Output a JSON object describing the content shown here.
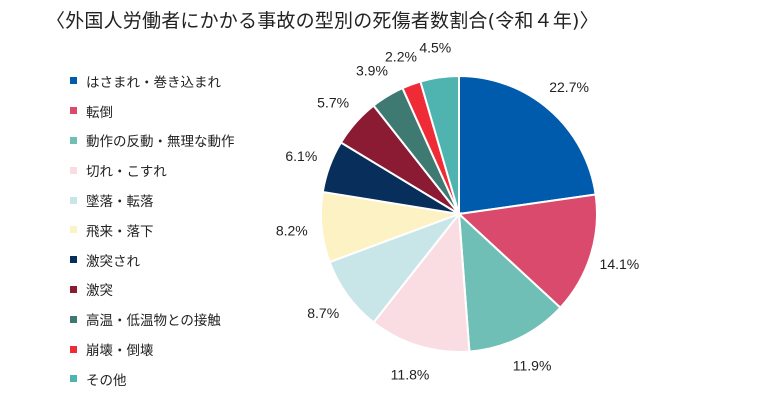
{
  "chart_data": {
    "type": "pie",
    "title": "〈外国人労働者にかかる事故の型別の死傷者数割合(令和４年)〉",
    "categories": [
      "はさまれ・巻き込まれ",
      "転倒",
      "動作の反動・無理な動作",
      "切れ・こすれ",
      "墜落・転落",
      "飛来・落下",
      "激突され",
      "激突",
      "高温・低温物との接触",
      "崩壊・倒壊",
      "その他"
    ],
    "values": [
      22.7,
      14.1,
      11.9,
      11.8,
      8.7,
      8.2,
      6.1,
      5.7,
      3.9,
      2.2,
      4.5
    ],
    "labels": [
      "22.7%",
      "14.1%",
      "11.9%",
      "11.8%",
      "8.7%",
      "8.2%",
      "6.1%",
      "5.7%",
      "3.9%",
      "2.2%",
      "4.5%"
    ],
    "colors": [
      "#005bac",
      "#d94a6c",
      "#6fbfb6",
      "#fadde3",
      "#c8e6e8",
      "#fdf2c4",
      "#082f5c",
      "#8b1a33",
      "#3f7a72",
      "#ee2b36",
      "#4fb3b0"
    ],
    "legend": "left",
    "start": "12 o'clock, clockwise"
  }
}
